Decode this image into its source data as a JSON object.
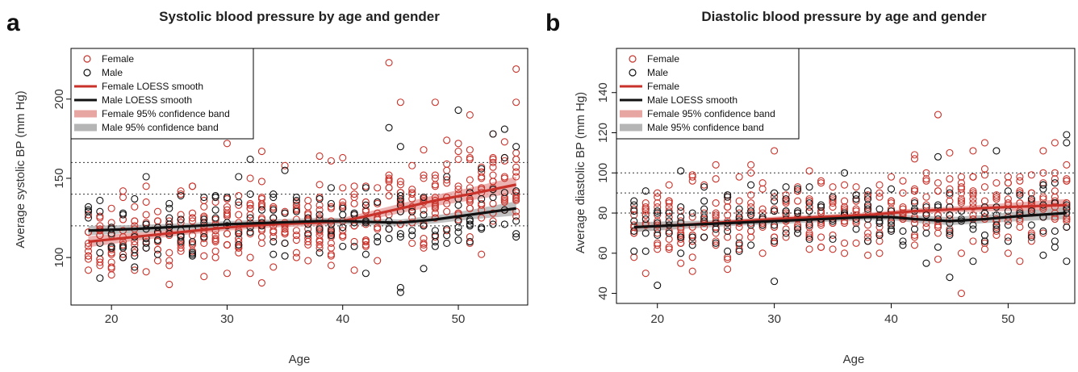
{
  "colors": {
    "female": "#c8322a",
    "male": "#111111",
    "female_band": "#e8a6a3",
    "male_band": "#b5b5b5"
  },
  "chart_data": [
    {
      "panel": "a",
      "type": "scatter",
      "title": "Systolic blood pressure by age and gender",
      "xlabel": "Age",
      "ylabel": "Average systolic BP (mm Hg)",
      "xlim": [
        16.5,
        56
      ],
      "ylim": [
        70,
        232
      ],
      "xticks": [
        20,
        30,
        40,
        50
      ],
      "yticks": [
        100,
        150,
        200
      ],
      "reference_lines": [
        120,
        140,
        160
      ],
      "legend_position": "top-left",
      "legend": [
        "Female",
        "Male",
        "Female LOESS smooth",
        "Male LOESS smooth",
        "Female 95% confidence band",
        "Male 95% confidence band"
      ],
      "series": [
        {
          "name": "Female LOESS smooth",
          "x": [
            18,
            22,
            26,
            30,
            34,
            38,
            40,
            42,
            45,
            48,
            51,
            55
          ],
          "y": [
            110,
            113,
            116,
            119,
            121,
            122,
            123,
            126,
            131,
            136,
            140,
            146
          ],
          "band": [
            3.5,
            2.5,
            2,
            2,
            2,
            2,
            2,
            2.5,
            3,
            3.5,
            4,
            5
          ]
        },
        {
          "name": "Male LOESS smooth",
          "x": [
            18,
            22,
            26,
            30,
            34,
            38,
            40,
            42,
            45,
            48,
            51,
            55
          ],
          "y": [
            117,
            118,
            119.5,
            121,
            122,
            123,
            123,
            122.5,
            122,
            124,
            127,
            131
          ],
          "band": [
            3,
            2.5,
            2,
            2,
            2,
            2,
            2,
            2,
            2,
            2.5,
            3,
            4.5
          ]
        }
      ],
      "points": {
        "female_high": [
          [
            44,
            223
          ],
          [
            55,
            219
          ],
          [
            45,
            198
          ],
          [
            55,
            198
          ],
          [
            48,
            198
          ],
          [
            49,
            174
          ],
          [
            51,
            190
          ],
          [
            53,
            178
          ],
          [
            54,
            173
          ],
          [
            30,
            172
          ],
          [
            33,
            167
          ],
          [
            38,
            164
          ],
          [
            39,
            161
          ],
          [
            35,
            158
          ],
          [
            52,
            157
          ],
          [
            55,
            154
          ],
          [
            47,
            168
          ],
          [
            50,
            162
          ],
          [
            40,
            163
          ],
          [
            46,
            158
          ]
        ],
        "male_high": [
          [
            50,
            193
          ],
          [
            44,
            182
          ],
          [
            54,
            181
          ],
          [
            45,
            170
          ],
          [
            55,
            170
          ],
          [
            53,
            178
          ],
          [
            35,
            155
          ],
          [
            32,
            162
          ],
          [
            52,
            156
          ],
          [
            45,
            81
          ],
          [
            45,
            78
          ],
          [
            47,
            93
          ]
        ]
      }
    },
    {
      "panel": "b",
      "type": "scatter",
      "title": "Diastolic blood pressure by age and gender",
      "xlabel": "Age",
      "ylabel": "Average diastolic BP (mm Hg)",
      "xlim": [
        16.5,
        55.7
      ],
      "ylim": [
        35,
        162
      ],
      "xticks": [
        20,
        30,
        40,
        50
      ],
      "yticks": [
        40,
        60,
        80,
        100,
        120,
        140
      ],
      "reference_lines": [
        80,
        90,
        100
      ],
      "legend_position": "top-left",
      "legend": [
        "Female",
        "Male",
        "Female",
        "Male LOESS smooth",
        "Female 95% confidence band",
        "Male 95% confidence band"
      ],
      "series": [
        {
          "name": "Female",
          "x": [
            18,
            22,
            26,
            30,
            34,
            38,
            42,
            46,
            50,
            55
          ],
          "y": [
            73,
            74,
            75.5,
            77,
            78,
            79,
            81,
            82,
            83,
            84
          ],
          "band": [
            2.5,
            1.5,
            1.2,
            1.2,
            1.2,
            1.2,
            1.3,
            1.5,
            2,
            3
          ]
        },
        {
          "name": "Male LOESS smooth",
          "x": [
            18,
            22,
            26,
            30,
            34,
            38,
            40,
            42,
            45,
            48,
            51,
            55
          ],
          "y": [
            73,
            74,
            75,
            76,
            77,
            78,
            78,
            77,
            76,
            77,
            78.5,
            80
          ],
          "band": [
            2.5,
            2,
            1.5,
            1.5,
            1.5,
            1.5,
            1.5,
            1.8,
            2,
            2,
            2.5,
            3
          ]
        }
      ],
      "points": {
        "female_high": [
          [
            44,
            129
          ],
          [
            48,
            115
          ],
          [
            30,
            111
          ],
          [
            45,
            110
          ],
          [
            42,
            109
          ],
          [
            53,
            111
          ],
          [
            55,
            104
          ],
          [
            46,
            40
          ],
          [
            28,
            104
          ],
          [
            25,
            104
          ],
          [
            23,
            99
          ]
        ],
        "male_high": [
          [
            55,
            119
          ],
          [
            55,
            115
          ],
          [
            49,
            111
          ],
          [
            44,
            108
          ],
          [
            22,
            101
          ],
          [
            20,
            44
          ],
          [
            30,
            46
          ],
          [
            45,
            48
          ],
          [
            43,
            55
          ],
          [
            53,
            59
          ]
        ]
      }
    }
  ],
  "panels": {
    "a": {
      "letter": "a"
    },
    "b": {
      "letter": "b"
    }
  }
}
